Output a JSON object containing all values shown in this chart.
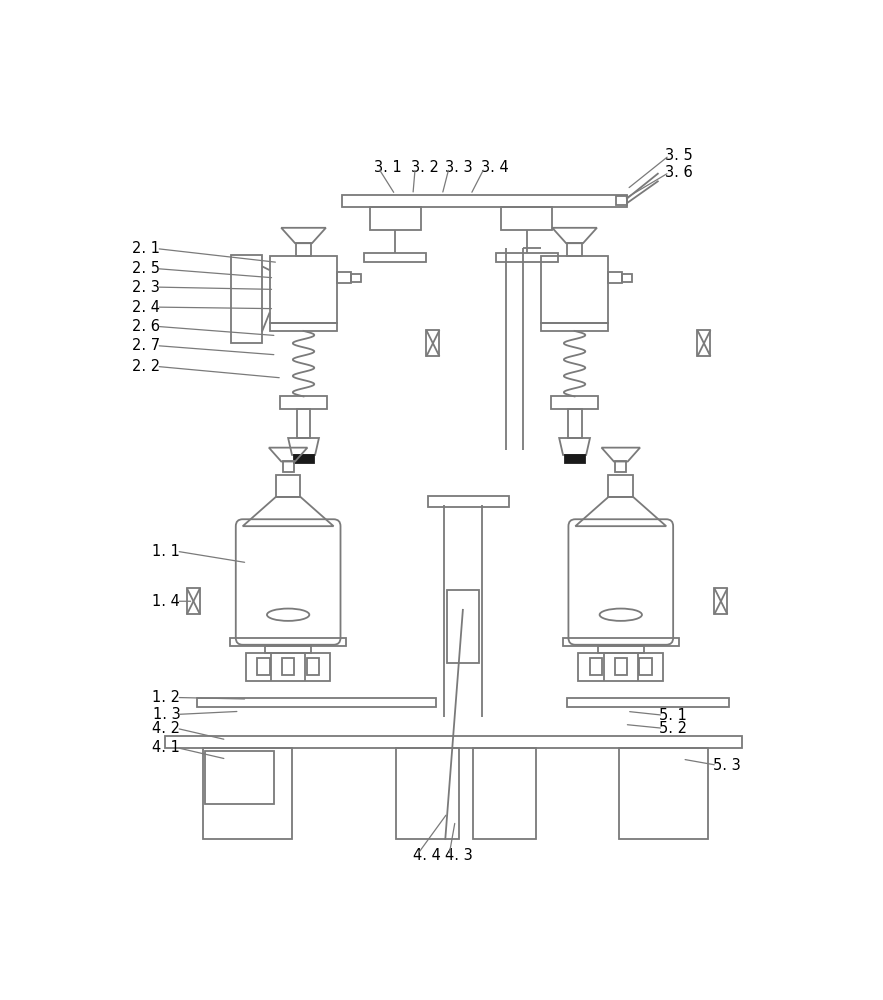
{
  "bg_color": "#ffffff",
  "line_color": "#7a7a7a",
  "line_width": 1.3,
  "label_color": "#000000",
  "label_fontsize": 10.5,
  "figsize": [
    8.83,
    10.0
  ],
  "dpi": 100
}
